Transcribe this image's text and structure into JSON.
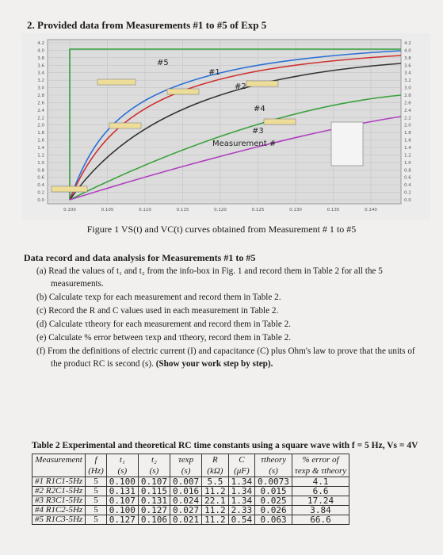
{
  "heading": "2. Provided data from Measurements #1 to #5 of Exp 5",
  "figure": {
    "curve_labels": [
      "#5",
      "#1",
      "#2",
      "#4",
      "#3"
    ],
    "annotation": "Measurement #",
    "y_tick_labels": [
      "4.2",
      "4.0",
      "3.8",
      "3.6",
      "3.4",
      "3.2",
      "3.0",
      "2.8",
      "2.6",
      "2.4",
      "2.2",
      "2.0",
      "1.8",
      "1.6",
      "1.4",
      "1.2",
      "1.0",
      "0.8",
      "0.6",
      "0.4",
      "0.2",
      "0.0"
    ],
    "x_tick_labels": [
      "0.100",
      "0.105",
      "0.110",
      "0.115",
      "0.120",
      "0.125",
      "0.130",
      "0.135",
      "0.140"
    ],
    "caption": "Figure 1 VS(t) and VC(t) curves obtained from Measurement # 1 to #5"
  },
  "section_title": "Data record and data analysis for Measurements #1 to #5",
  "items": [
    "(a) Read the values of t₁ and t₂ from the info-box in Fig. 1 and record them in Table 2 for all the 5 measurements.",
    "(b) Calculate τexp for each measurement and record them in Table 2.",
    "(c) Record the R and C values used in each measurement in Table 2.",
    "(d) Calculate τtheory for each measurement and record them in Table 2.",
    "(e) Calculate % error between τexp and τtheory, record them in Table 2.",
    "(f) From the definitions of electric current (I) and capacitance (C) plus Ohm's law to prove that the units of the product RC is second (s)."
  ],
  "item_f_bold": "(Show your work step by step).",
  "table": {
    "caption": "Table 2 Experimental and theoretical RC time constants using a square wave with f = 5 Hz, Vs = 4V",
    "header": [
      [
        "Measurement",
        "f",
        "t₁",
        "t₂",
        "τexp",
        "R",
        "C",
        "τtheory",
        "% error of"
      ],
      [
        "",
        "(Hz)",
        "(s)",
        "(s)",
        "(s)",
        "(kΩ)",
        "(μF)",
        "(s)",
        "τexp & τtheory"
      ]
    ],
    "rows": [
      [
        "#1 R1C1-5Hz",
        "5",
        "0.100",
        "0.107",
        "0.007",
        "5.5",
        "1.34",
        "0.0073",
        "4.1"
      ],
      [
        "#2 R2C1-5Hz",
        "5",
        "0.131",
        "0.115",
        "0.016",
        "11.2",
        "1.34",
        "0.015",
        "6.6"
      ],
      [
        "#3 R3C1-5Hz",
        "5",
        "0.107",
        "0.131",
        "0.024",
        "22.1",
        "1.34",
        "0.025",
        "17.24"
      ],
      [
        "#4 R1C2-5Hz",
        "5",
        "0.100",
        "0.127",
        "0.027",
        "11.2",
        "2.33",
        "0.026",
        "3.84"
      ],
      [
        "#5 R1C3-5Hz",
        "5",
        "0.127",
        "0.106",
        "0.021",
        "11.2",
        "0.54",
        "0.063",
        "66.6"
      ]
    ]
  }
}
